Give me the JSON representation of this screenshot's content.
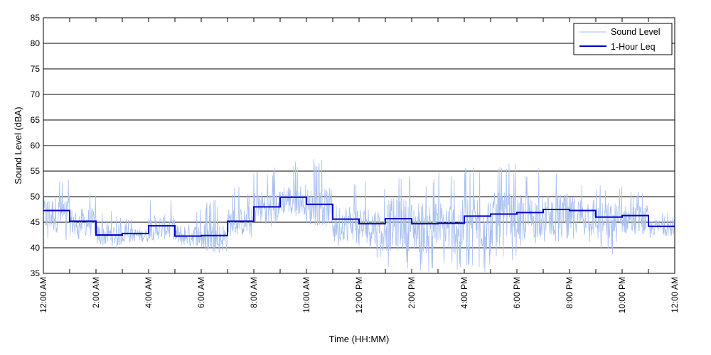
{
  "chart_data": {
    "type": "line",
    "title": "",
    "xlabel": "Time (HH:MM)",
    "ylabel": "Sound Level (dBA)",
    "xlim": [
      0,
      24
    ],
    "ylim": [
      35,
      85
    ],
    "y_ticks": [
      35,
      40,
      45,
      50,
      55,
      60,
      65,
      70,
      75,
      80,
      85
    ],
    "x_ticks": [
      0,
      2,
      4,
      6,
      8,
      10,
      12,
      14,
      16,
      18,
      20,
      22,
      24
    ],
    "x_tick_labels": [
      "12:00 AM",
      "2:00 AM",
      "4:00 AM",
      "6:00 AM",
      "8:00 AM",
      "10:00 AM",
      "12:00 PM",
      "2:00 PM",
      "4:00 PM",
      "6:00 PM",
      "8:00 PM",
      "10:00 PM",
      "12:00 AM"
    ],
    "grid": "horizontal",
    "legend_position": "top-right",
    "series": [
      {
        "name": "Sound Level",
        "color": "#a9c0f0",
        "hourly_envelope": [
          {
            "hour": 0,
            "min": 41,
            "max": 54,
            "mean": 46.5
          },
          {
            "hour": 1,
            "min": 41.5,
            "max": 51.5,
            "mean": 45
          },
          {
            "hour": 2,
            "min": 39.5,
            "max": 47.5,
            "mean": 42.5
          },
          {
            "hour": 3,
            "min": 41,
            "max": 46,
            "mean": 42.5
          },
          {
            "hour": 4,
            "min": 41,
            "max": 50,
            "mean": 44
          },
          {
            "hour": 5,
            "min": 40,
            "max": 48,
            "mean": 42.5
          },
          {
            "hour": 6,
            "min": 39,
            "max": 49.5,
            "mean": 42
          },
          {
            "hour": 7,
            "min": 42,
            "max": 52,
            "mean": 45
          },
          {
            "hour": 8,
            "min": 44,
            "max": 56,
            "mean": 48
          },
          {
            "hour": 9,
            "min": 46,
            "max": 57,
            "mean": 49.5
          },
          {
            "hour": 10,
            "min": 44,
            "max": 57.5,
            "mean": 48
          },
          {
            "hour": 11,
            "min": 40,
            "max": 53,
            "mean": 45
          },
          {
            "hour": 12,
            "min": 38,
            "max": 53,
            "mean": 44
          },
          {
            "hour": 13,
            "min": 36,
            "max": 55,
            "mean": 44.5
          },
          {
            "hour": 14,
            "min": 35,
            "max": 54,
            "mean": 44
          },
          {
            "hour": 15,
            "min": 35.5,
            "max": 55,
            "mean": 44
          },
          {
            "hour": 16,
            "min": 35,
            "max": 56,
            "mean": 45
          },
          {
            "hour": 17,
            "min": 37,
            "max": 56.5,
            "mean": 45.5
          },
          {
            "hour": 18,
            "min": 40,
            "max": 55.5,
            "mean": 46
          },
          {
            "hour": 19,
            "min": 41,
            "max": 56,
            "mean": 46.5
          },
          {
            "hour": 20,
            "min": 41,
            "max": 54,
            "mean": 46.5
          },
          {
            "hour": 21,
            "min": 38.5,
            "max": 53,
            "mean": 45
          },
          {
            "hour": 22,
            "min": 41,
            "max": 51.5,
            "mean": 45.5
          },
          {
            "hour": 23,
            "min": 41,
            "max": 47,
            "mean": 44
          }
        ]
      },
      {
        "name": "1-Hour Leq",
        "color": "#0000cc",
        "step": "post",
        "x": [
          0,
          1,
          2,
          3,
          4,
          5,
          6,
          7,
          8,
          9,
          10,
          11,
          12,
          13,
          14,
          15,
          16,
          17,
          18,
          19,
          20,
          21,
          22,
          23
        ],
        "values": [
          47.3,
          45.2,
          42.5,
          42.8,
          44.3,
          42.3,
          42.4,
          45.2,
          48.0,
          49.9,
          48.5,
          45.6,
          44.7,
          45.7,
          44.7,
          44.8,
          46.2,
          46.6,
          46.9,
          47.5,
          47.3,
          46.0,
          46.3,
          44.2
        ]
      }
    ]
  }
}
